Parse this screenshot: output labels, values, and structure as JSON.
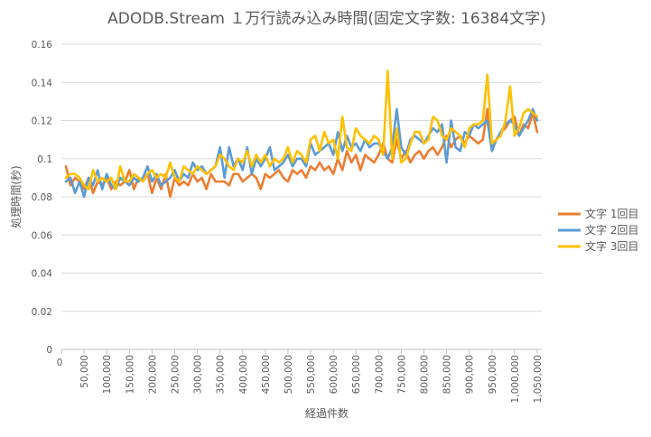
{
  "chart_data": {
    "type": "line",
    "title": "ADODB.Stream １万行読み込み時間(固定文字数: 16384文字)",
    "xlabel": "経過件数",
    "ylabel": "処理時間(秒)",
    "xlim": [
      0,
      1060000
    ],
    "ylim": [
      0,
      0.16
    ],
    "y_ticks": [
      "0",
      "0.02",
      "0.04",
      "0.06",
      "0.08",
      "0.1",
      "0.12",
      "0.14",
      "0.16"
    ],
    "x_ticks": [
      {
        "value": 0,
        "label": "0"
      },
      {
        "value": 50000,
        "label": "50,000"
      },
      {
        "value": 100000,
        "label": "100,000"
      },
      {
        "value": 150000,
        "label": "150,000"
      },
      {
        "value": 200000,
        "label": "200,000"
      },
      {
        "value": 250000,
        "label": "250,000"
      },
      {
        "value": 300000,
        "label": "300,000"
      },
      {
        "value": 350000,
        "label": "350,000"
      },
      {
        "value": 400000,
        "label": "400,000"
      },
      {
        "value": 450000,
        "label": "450,000"
      },
      {
        "value": 500000,
        "label": "500,000"
      },
      {
        "value": 550000,
        "label": "550,000"
      },
      {
        "value": 600000,
        "label": "600,000"
      },
      {
        "value": 650000,
        "label": "650,000"
      },
      {
        "value": 700000,
        "label": "700,000"
      },
      {
        "value": 750000,
        "label": "750,000"
      },
      {
        "value": 800000,
        "label": "800,000"
      },
      {
        "value": 850000,
        "label": "850,000"
      },
      {
        "value": 900000,
        "label": "900,000"
      },
      {
        "value": 950000,
        "label": "950,000"
      },
      {
        "value": 1000000,
        "label": "1,000,000"
      },
      {
        "value": 1050000,
        "label": "1,050,000"
      }
    ],
    "grid": true,
    "legend_position": "right",
    "x_start": 10000,
    "x_step": 10000,
    "series": [
      {
        "name": "文字 1回目",
        "color": "#ed7d31",
        "values": [
          0.096,
          0.086,
          0.09,
          0.088,
          0.084,
          0.09,
          0.082,
          0.088,
          0.086,
          0.09,
          0.084,
          0.088,
          0.086,
          0.088,
          0.094,
          0.084,
          0.09,
          0.088,
          0.092,
          0.082,
          0.09,
          0.084,
          0.092,
          0.08,
          0.09,
          0.086,
          0.088,
          0.086,
          0.092,
          0.088,
          0.09,
          0.084,
          0.092,
          0.088,
          0.088,
          0.088,
          0.086,
          0.092,
          0.092,
          0.088,
          0.09,
          0.092,
          0.09,
          0.084,
          0.092,
          0.09,
          0.092,
          0.094,
          0.09,
          0.088,
          0.094,
          0.092,
          0.094,
          0.09,
          0.096,
          0.094,
          0.098,
          0.094,
          0.096,
          0.092,
          0.1,
          0.094,
          0.104,
          0.098,
          0.102,
          0.094,
          0.102,
          0.1,
          0.098,
          0.102,
          0.108,
          0.1,
          0.098,
          0.11,
          0.1,
          0.104,
          0.098,
          0.102,
          0.104,
          0.1,
          0.104,
          0.106,
          0.102,
          0.106,
          0.112,
          0.106,
          0.11,
          0.112,
          0.108,
          0.112,
          0.11,
          0.108,
          0.11,
          0.126,
          0.106,
          0.11,
          0.114,
          0.116,
          0.12,
          0.122,
          0.112,
          0.118,
          0.116,
          0.124,
          0.114
        ]
      },
      {
        "name": "文字 2回目",
        "color": "#5b9bd5",
        "values": [
          0.088,
          0.09,
          0.082,
          0.088,
          0.08,
          0.09,
          0.086,
          0.094,
          0.084,
          0.092,
          0.086,
          0.084,
          0.09,
          0.088,
          0.086,
          0.09,
          0.088,
          0.09,
          0.096,
          0.088,
          0.092,
          0.086,
          0.088,
          0.09,
          0.094,
          0.088,
          0.092,
          0.09,
          0.098,
          0.094,
          0.096,
          0.092,
          0.094,
          0.096,
          0.106,
          0.09,
          0.106,
          0.096,
          0.1,
          0.094,
          0.106,
          0.092,
          0.1,
          0.096,
          0.1,
          0.106,
          0.094,
          0.096,
          0.098,
          0.102,
          0.096,
          0.1,
          0.1,
          0.096,
          0.108,
          0.102,
          0.104,
          0.106,
          0.108,
          0.102,
          0.114,
          0.104,
          0.112,
          0.106,
          0.108,
          0.104,
          0.11,
          0.106,
          0.108,
          0.108,
          0.104,
          0.1,
          0.106,
          0.126,
          0.106,
          0.102,
          0.11,
          0.112,
          0.11,
          0.108,
          0.112,
          0.116,
          0.114,
          0.118,
          0.098,
          0.12,
          0.106,
          0.104,
          0.114,
          0.112,
          0.118,
          0.116,
          0.118,
          0.12,
          0.104,
          0.11,
          0.114,
          0.118,
          0.12,
          0.118,
          0.112,
          0.116,
          0.12,
          0.126,
          0.12
        ]
      },
      {
        "name": "文字 3回目",
        "color": "#ffc000",
        "values": [
          0.09,
          0.092,
          0.092,
          0.09,
          0.086,
          0.084,
          0.094,
          0.088,
          0.09,
          0.088,
          0.09,
          0.084,
          0.096,
          0.088,
          0.088,
          0.092,
          0.09,
          0.088,
          0.092,
          0.094,
          0.09,
          0.092,
          0.09,
          0.098,
          0.09,
          0.088,
          0.096,
          0.094,
          0.092,
          0.096,
          0.094,
          0.092,
          0.094,
          0.096,
          0.102,
          0.1,
          0.096,
          0.094,
          0.1,
          0.098,
          0.104,
          0.096,
          0.102,
          0.098,
          0.102,
          0.096,
          0.1,
          0.098,
          0.1,
          0.106,
          0.098,
          0.104,
          0.102,
          0.098,
          0.11,
          0.112,
          0.104,
          0.114,
          0.108,
          0.11,
          0.1,
          0.122,
          0.106,
          0.104,
          0.116,
          0.112,
          0.11,
          0.108,
          0.112,
          0.11,
          0.102,
          0.146,
          0.1,
          0.116,
          0.098,
          0.1,
          0.108,
          0.114,
          0.114,
          0.108,
          0.11,
          0.122,
          0.12,
          0.112,
          0.11,
          0.116,
          0.114,
          0.112,
          0.106,
          0.116,
          0.118,
          0.118,
          0.12,
          0.144,
          0.108,
          0.11,
          0.112,
          0.12,
          0.138,
          0.112,
          0.116,
          0.124,
          0.126,
          0.124,
          0.122
        ]
      }
    ]
  }
}
